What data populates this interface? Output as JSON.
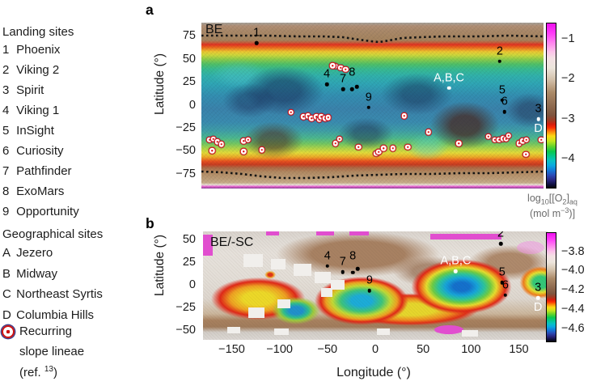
{
  "legend": {
    "landing_title": "Landing sites",
    "landing_sites": [
      {
        "key": "1",
        "name": "Phoenix"
      },
      {
        "key": "2",
        "name": "Viking 2"
      },
      {
        "key": "3",
        "name": "Spirit"
      },
      {
        "key": "4",
        "name": "Viking 1"
      },
      {
        "key": "5",
        "name": "InSight"
      },
      {
        "key": "6",
        "name": "Curiosity"
      },
      {
        "key": "7",
        "name": "Pathfinder"
      },
      {
        "key": "8",
        "name": "ExoMars"
      },
      {
        "key": "9",
        "name": "Opportunity"
      }
    ],
    "geo_title": "Geographical sites",
    "geo_sites": [
      {
        "key": "A",
        "name": "Jezero"
      },
      {
        "key": "B",
        "name": "Midway"
      },
      {
        "key": "C",
        "name": "Northeast Syrtis"
      },
      {
        "key": "D",
        "name": "Columbia Hills"
      }
    ],
    "rsl_line1": "Recurring",
    "rsl_line2": "slope lineae",
    "rsl_ref_pre": "(ref. ",
    "rsl_ref_sup": "13",
    "rsl_ref_post": ")"
  },
  "colorbar_label": {
    "p1": "log",
    "s1": "10",
    "p2": "[[O",
    "s2": "2",
    "p3": "]",
    "s3": "aq",
    "l2a": "(mol m",
    "l2sup": "−3",
    "l2b": ")]"
  },
  "xaxis": {
    "label": "Longitude (°)",
    "ticks": [
      {
        "v": -150,
        "label": "−150"
      },
      {
        "v": -100,
        "label": "−100"
      },
      {
        "v": -50,
        "label": "−50"
      },
      {
        "v": 0,
        "label": "0"
      },
      {
        "v": 50,
        "label": "50"
      },
      {
        "v": 100,
        "label": "100"
      },
      {
        "v": 150,
        "label": "150"
      }
    ]
  },
  "chart_data": [
    {
      "id": "a",
      "letter": "a",
      "type": "heatmap",
      "map_label": "BE",
      "ylabel": "Latitude (°)",
      "xlim": [
        -180,
        180
      ],
      "ylim": [
        -90,
        90
      ],
      "yticks": [
        {
          "v": 75,
          "label": "75"
        },
        {
          "v": 50,
          "label": "50"
        },
        {
          "v": 25,
          "label": "25"
        },
        {
          "v": 0,
          "label": "0"
        },
        {
          "v": -25,
          "label": "−25"
        },
        {
          "v": -50,
          "label": "−50"
        },
        {
          "v": -75,
          "label": "−75"
        }
      ],
      "colorbar": {
        "range_top_to_bottom": [
          -0.6,
          -4.7
        ],
        "ticks": [
          {
            "v": -1,
            "label": "−1"
          },
          {
            "v": -2,
            "label": "−2"
          },
          {
            "v": -3,
            "label": "−3"
          },
          {
            "v": -4,
            "label": "−4"
          }
        ]
      },
      "dotted_lines_lat": [
        68,
        -67
      ],
      "markers": [
        {
          "id": "1",
          "label": "1",
          "lon": -122,
          "lat": 68,
          "label_color": "black",
          "dot_color": "black"
        },
        {
          "id": "2",
          "label": "2",
          "lon": 134,
          "lat": 48,
          "label_color": "black",
          "dot_color": "black"
        },
        {
          "id": "4",
          "label": "4",
          "lon": -48,
          "lat": 23,
          "label_color": "black",
          "dot_color": "black"
        },
        {
          "id": "7",
          "label": "7",
          "lon": -31,
          "lat": 18,
          "label_color": "black",
          "dot_color": "black"
        },
        {
          "id": "8",
          "label": "8",
          "lon": -21.5,
          "lat": 18,
          "label_color": "black",
          "dot_color": "black",
          "label_dy": -8,
          "extra_dots": [
            [
              -16.5,
              20.5
            ]
          ]
        },
        {
          "id": "9",
          "label": "9",
          "lon": -4,
          "lat": -2,
          "label_color": "black",
          "dot_color": "black"
        },
        {
          "id": "ABC",
          "label": "A,B,C",
          "lon": 80.5,
          "lat": 19,
          "label_color": "white",
          "dot_color": "white"
        },
        {
          "id": "5",
          "label": "5",
          "lon": 136.5,
          "lat": 6,
          "label_color": "black",
          "dot_color": "black"
        },
        {
          "id": "6",
          "label": "6",
          "lon": 139,
          "lat": -7,
          "label_color": "black",
          "dot_color": "black"
        },
        {
          "id": "3D",
          "label": "3",
          "lon": 174.5,
          "lat": -14.5,
          "label_color": "black",
          "dot_color": "white",
          "label2": "D",
          "label2_color": "white"
        }
      ],
      "rsl_points": [
        [
          -85.7,
          -7.4
        ],
        [
          -72.7,
          -11.9
        ],
        [
          -67.7,
          -11.0
        ],
        [
          -64.1,
          -13.7
        ],
        [
          -59.0,
          -11.9
        ],
        [
          -55.8,
          -15.3
        ],
        [
          -54.0,
          -11.9
        ],
        [
          -49.7,
          -13.7
        ],
        [
          -46.4,
          -12.8
        ],
        [
          -135.7,
          -38.2
        ],
        [
          -130.7,
          -37.3
        ],
        [
          -171.4,
          -37.3
        ],
        [
          -167.4,
          -36.4
        ],
        [
          -163.1,
          -39.1
        ],
        [
          -168.8,
          -48.8
        ],
        [
          -158.8,
          -41.8
        ],
        [
          -135.7,
          -49.7
        ],
        [
          -116.3,
          -47.9
        ],
        [
          -38.9,
          -40.9
        ],
        [
          -34.6,
          -36.4
        ],
        [
          -14.8,
          -45.2
        ],
        [
          4.0,
          -52.2
        ],
        [
          -38.9,
          42.7
        ],
        [
          -33.5,
          40.9
        ],
        [
          -28.4,
          39.1
        ],
        [
          -42.1,
          43.4
        ],
        [
          33.5,
          -11.0
        ],
        [
          59.0,
          -28.6
        ],
        [
          90.7,
          -40.9
        ],
        [
          6.5,
          -50.4
        ],
        [
          11.5,
          -46.1
        ],
        [
          21.6,
          -46.1
        ],
        [
          37.1,
          -45.2
        ],
        [
          122.0,
          -33.8
        ],
        [
          128.9,
          -37.3
        ],
        [
          133.2,
          -37.3
        ],
        [
          137.5,
          -35.6
        ],
        [
          140.8,
          -36.4
        ],
        [
          143.3,
          -32.9
        ],
        [
          154.4,
          -40.9
        ],
        [
          158.0,
          -38.2
        ],
        [
          162.0,
          -37.3
        ],
        [
          161.3,
          -53.1
        ],
        [
          177.5,
          -37.3
        ]
      ]
    },
    {
      "id": "b",
      "letter": "b",
      "type": "heatmap",
      "map_label": "BE/-SC",
      "ylabel": "Latitude (°)",
      "xlim": [
        -180,
        180
      ],
      "ylim": [
        -60,
        60
      ],
      "yticks": [
        {
          "v": 50,
          "label": "50"
        },
        {
          "v": 25,
          "label": "25"
        },
        {
          "v": 0,
          "label": "0"
        },
        {
          "v": -25,
          "label": "−25"
        },
        {
          "v": -50,
          "label": "−50"
        }
      ],
      "colorbar": {
        "range_top_to_bottom": [
          -3.6,
          -4.73
        ],
        "ticks": [
          {
            "v": -3.8,
            "label": "−3.8"
          },
          {
            "v": -4.0,
            "label": "−4.0"
          },
          {
            "v": -4.2,
            "label": "−4.2"
          },
          {
            "v": -4.4,
            "label": "−4.4"
          },
          {
            "v": -4.6,
            "label": "−4.6"
          }
        ]
      },
      "markers": [
        {
          "id": "2",
          "label": "2",
          "lon": 131,
          "lat": 46.5,
          "label_color": "black",
          "dot_color": "black"
        },
        {
          "id": "4",
          "label": "4",
          "lon": -50,
          "lat": 21.5,
          "label_color": "black",
          "dot_color": "black"
        },
        {
          "id": "7",
          "label": "7",
          "lon": -34,
          "lat": 15,
          "label_color": "black",
          "dot_color": "black"
        },
        {
          "id": "8",
          "label": "8",
          "lon": -23.5,
          "lat": 14.5,
          "label_color": "black",
          "dot_color": "black",
          "label_dy": -8,
          "extra_dots": [
            [
              -18.5,
              18.5
            ]
          ]
        },
        {
          "id": "9",
          "label": "9",
          "lon": -6,
          "lat": -5.5,
          "label_color": "black",
          "dot_color": "black"
        },
        {
          "id": "ABC",
          "label": "A,B,C",
          "lon": 84,
          "lat": 16,
          "label_color": "white",
          "dot_color": "white"
        },
        {
          "id": "5",
          "label": "5",
          "lon": 132.5,
          "lat": 3.5,
          "label_color": "black",
          "dot_color": "black"
        },
        {
          "id": "6",
          "label": "6",
          "lon": 136,
          "lat": -10.5,
          "label_color": "black",
          "dot_color": "black"
        },
        {
          "id": "3D",
          "label": "3",
          "lon": 170,
          "lat": -13.5,
          "label_color": "black",
          "dot_color": "white",
          "label2": "D",
          "label2_color": "white"
        }
      ],
      "rsl_points": []
    }
  ]
}
